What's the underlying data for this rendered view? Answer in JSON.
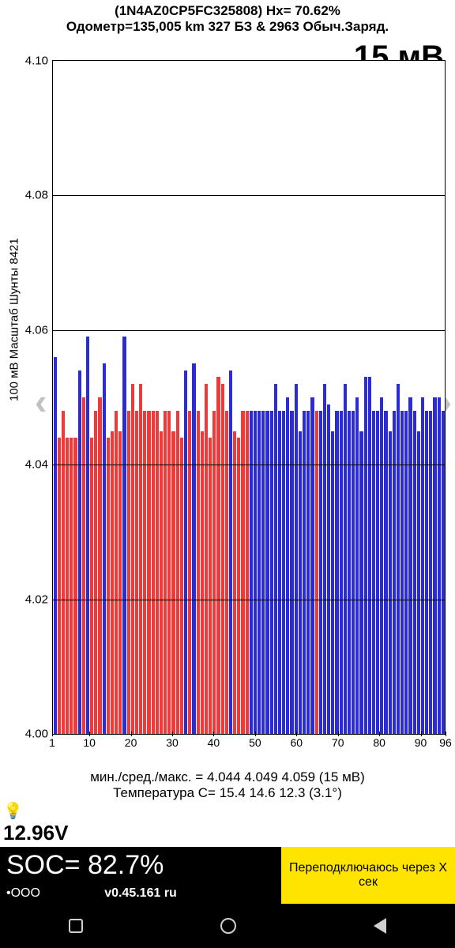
{
  "header": {
    "line1": "(1N4AZ0CP5FC325808)   Hx= 70.62%",
    "line2": "Одометр=135,005 km 327 БЗ & 2963 Обыч.Заряд."
  },
  "big_value": "15 мВ",
  "y_label_rot": "100 мВ Масштаб   Шунты 8421",
  "chart": {
    "type": "bar",
    "ylim": [
      4.0,
      4.1
    ],
    "yticks": [
      4.0,
      4.02,
      4.04,
      4.06,
      4.08,
      4.1
    ],
    "ytick_labels": [
      "4.00",
      "4.02",
      "4.04",
      "4.06",
      "4.08",
      "4.10"
    ],
    "n_bars": 96,
    "xticks": [
      1,
      10,
      20,
      30,
      40,
      50,
      60,
      70,
      80,
      90,
      96
    ],
    "colors": {
      "red": "#f03a3a",
      "blue": "#2b2bd8",
      "grid": "#000000",
      "bg": "#ffffff"
    },
    "values": [
      4.056,
      4.044,
      4.048,
      4.044,
      4.044,
      4.044,
      4.054,
      4.05,
      4.059,
      4.044,
      4.048,
      4.05,
      4.055,
      4.044,
      4.045,
      4.048,
      4.045,
      4.059,
      4.048,
      4.052,
      4.048,
      4.052,
      4.048,
      4.048,
      4.048,
      4.048,
      4.045,
      4.048,
      4.048,
      4.045,
      4.048,
      4.044,
      4.054,
      4.048,
      4.055,
      4.048,
      4.045,
      4.052,
      4.044,
      4.048,
      4.053,
      4.052,
      4.048,
      4.054,
      4.045,
      4.044,
      4.048,
      4.048,
      4.048,
      4.048,
      4.048,
      4.048,
      4.048,
      4.048,
      4.052,
      4.048,
      4.048,
      4.05,
      4.048,
      4.052,
      4.045,
      4.048,
      4.048,
      4.05,
      4.048,
      4.048,
      4.052,
      4.049,
      4.045,
      4.048,
      4.048,
      4.052,
      4.048,
      4.048,
      4.05,
      4.045,
      4.053,
      4.053,
      4.048,
      4.048,
      4.05,
      4.048,
      4.045,
      4.048,
      4.052,
      4.048,
      4.048,
      4.05,
      4.048,
      4.045,
      4.05,
      4.048,
      4.048,
      4.05,
      4.05,
      4.048
    ],
    "bar_color_idx": [
      "b",
      "r",
      "r",
      "r",
      "r",
      "r",
      "b",
      "r",
      "b",
      "r",
      "r",
      "r",
      "b",
      "r",
      "r",
      "r",
      "r",
      "b",
      "r",
      "r",
      "r",
      "r",
      "r",
      "r",
      "r",
      "r",
      "r",
      "r",
      "r",
      "r",
      "r",
      "r",
      "b",
      "r",
      "b",
      "r",
      "r",
      "r",
      "r",
      "r",
      "r",
      "r",
      "r",
      "b",
      "r",
      "r",
      "r",
      "r",
      "b",
      "b",
      "b",
      "b",
      "b",
      "b",
      "b",
      "b",
      "b",
      "b",
      "b",
      "b",
      "b",
      "b",
      "b",
      "b",
      "r",
      "b",
      "b",
      "b",
      "b",
      "b",
      "b",
      "b",
      "b",
      "b",
      "b",
      "b",
      "b",
      "b",
      "b",
      "b",
      "b",
      "b",
      "b",
      "b",
      "b",
      "b",
      "b",
      "b",
      "b",
      "b",
      "b",
      "b",
      "b",
      "b",
      "b",
      "b"
    ]
  },
  "stats": {
    "line1": "мин./сред./макс. = 4.044 4.049 4.059  (15 мВ)",
    "line2": "Температура C= 15.4  14.6  12.3  (3.1°)"
  },
  "voltage": "12.96V",
  "soc": {
    "label": "SOC= 82.7%",
    "dots": "•OOO",
    "version": "v0.45.161 ru"
  },
  "reconnect": "Переподключаюсь через X сек",
  "header_fontsize": 17
}
